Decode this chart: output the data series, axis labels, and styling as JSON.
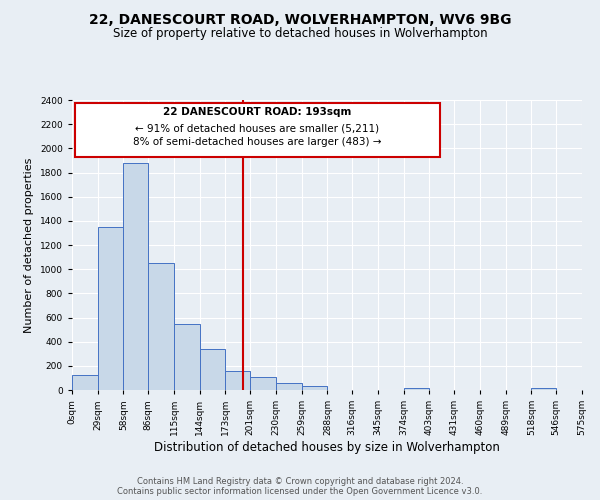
{
  "title": "22, DANESCOURT ROAD, WOLVERHAMPTON, WV6 9BG",
  "subtitle": "Size of property relative to detached houses in Wolverhampton",
  "xlabel": "Distribution of detached houses by size in Wolverhampton",
  "ylabel": "Number of detached properties",
  "bar_edges": [
    0,
    29,
    58,
    86,
    115,
    144,
    173,
    201,
    230,
    259,
    288,
    316,
    345,
    374,
    403,
    431,
    460,
    489,
    518,
    546,
    575
  ],
  "bar_heights": [
    125,
    1350,
    1880,
    1050,
    550,
    340,
    160,
    110,
    60,
    30,
    0,
    0,
    0,
    15,
    0,
    0,
    0,
    0,
    15,
    0
  ],
  "bar_color": "#c8d8e8",
  "bar_edge_color": "#4472c4",
  "vline_x": 193,
  "vline_color": "#cc0000",
  "ylim": [
    0,
    2400
  ],
  "yticks": [
    0,
    200,
    400,
    600,
    800,
    1000,
    1200,
    1400,
    1600,
    1800,
    2000,
    2200,
    2400
  ],
  "xtick_labels": [
    "0sqm",
    "29sqm",
    "58sqm",
    "86sqm",
    "115sqm",
    "144sqm",
    "173sqm",
    "201sqm",
    "230sqm",
    "259sqm",
    "288sqm",
    "316sqm",
    "345sqm",
    "374sqm",
    "403sqm",
    "431sqm",
    "460sqm",
    "489sqm",
    "518sqm",
    "546sqm",
    "575sqm"
  ],
  "annotation_title": "22 DANESCOURT ROAD: 193sqm",
  "annotation_line1": "← 91% of detached houses are smaller (5,211)",
  "annotation_line2": "8% of semi-detached houses are larger (483) →",
  "annotation_box_color": "#ffffff",
  "annotation_box_edge": "#cc0000",
  "footer_line1": "Contains HM Land Registry data © Crown copyright and database right 2024.",
  "footer_line2": "Contains public sector information licensed under the Open Government Licence v3.0.",
  "bg_color": "#e8eef4",
  "plot_bg_color": "#e8eef4",
  "grid_color": "#ffffff",
  "title_fontsize": 10,
  "subtitle_fontsize": 8.5,
  "xlabel_fontsize": 8.5,
  "ylabel_fontsize": 8,
  "tick_fontsize": 6.5,
  "footer_fontsize": 6,
  "annotation_fontsize": 7.5
}
